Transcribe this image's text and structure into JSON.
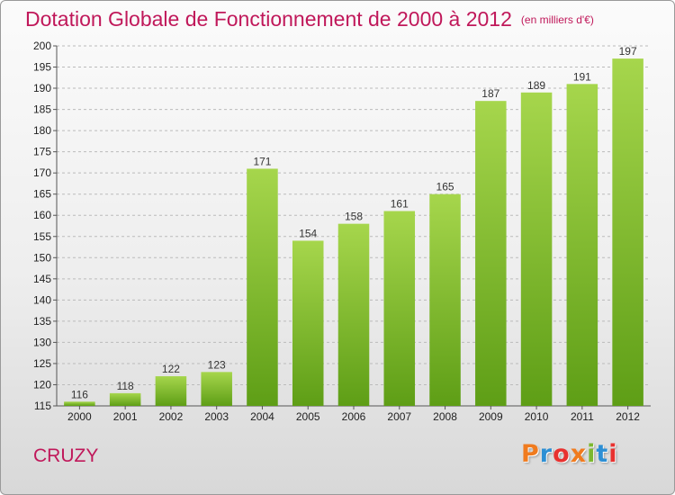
{
  "title": "Dotation Globale de Fonctionnement de 2000 à 2012",
  "unit_note": "(en milliers d'€)",
  "city": "CRUZY",
  "brand": {
    "text": "Proxiti",
    "colors": [
      "#f07b1e",
      "#2d8fd4",
      "#e8312f",
      "#f07b1e",
      "#7cb82f",
      "#2d8fd4",
      "#e8312f"
    ]
  },
  "chart_data": {
    "type": "bar",
    "title": "Dotation Globale de Fonctionnement de 2000 à 2012",
    "categories": [
      "2000",
      "2001",
      "2002",
      "2003",
      "2004",
      "2005",
      "2006",
      "2007",
      "2008",
      "2009",
      "2010",
      "2011",
      "2012"
    ],
    "values": [
      116,
      118,
      122,
      123,
      171,
      154,
      158,
      161,
      165,
      187,
      189,
      191,
      197
    ],
    "ylim": [
      115,
      200
    ],
    "yticks": [
      115,
      120,
      125,
      130,
      135,
      140,
      145,
      150,
      155,
      160,
      165,
      170,
      175,
      180,
      185,
      190,
      195,
      200
    ],
    "grid": true,
    "legend": "none",
    "bar_color": "#7dc02e"
  }
}
